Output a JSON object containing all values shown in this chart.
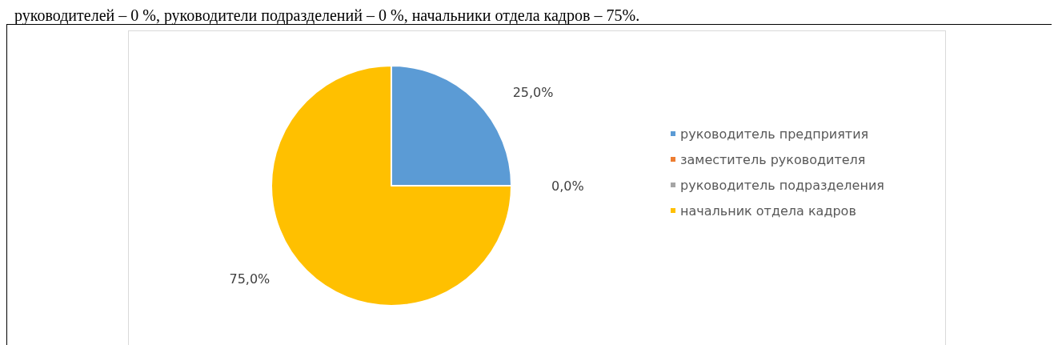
{
  "chart_data": {
    "type": "pie",
    "annotations": [
      "руководителей – 0 %, руководители подразделений – 0 %, начальники отдела кадров – 75%."
    ],
    "categories": [
      "руководитель предприятия",
      "заместитель руководителя",
      "руководитель подразделения",
      "начальник отдела кадров"
    ],
    "values": [
      25,
      0,
      0,
      75
    ],
    "colors": [
      "#5b9bd5",
      "#ed7d31",
      "#a5a5a5",
      "#ffc000"
    ],
    "value_labels": [
      "25,0%",
      "0,0%",
      null,
      "75,0%"
    ],
    "legend": "right"
  }
}
